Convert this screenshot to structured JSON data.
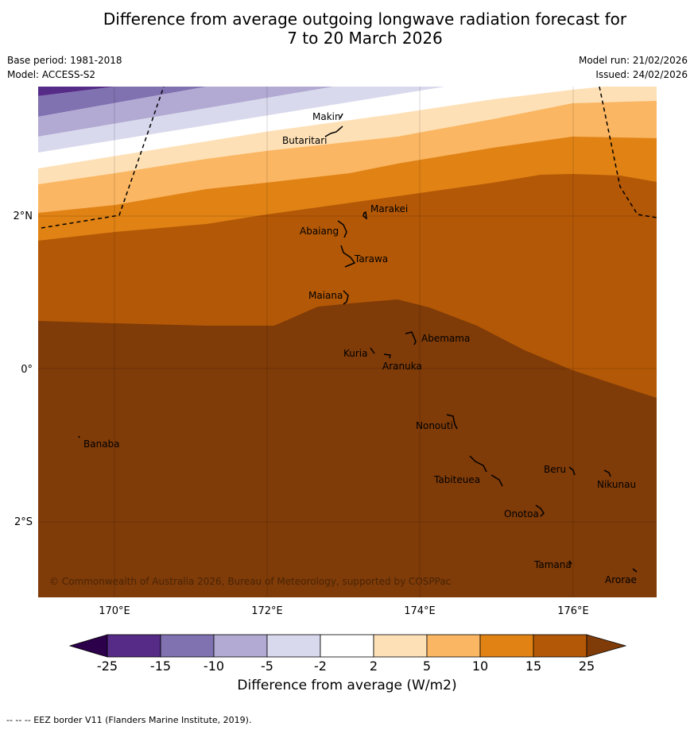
{
  "title": {
    "line1": "Difference from average outgoing longwave radiation forecast for",
    "line2": "7 to 20 March 2026"
  },
  "meta": {
    "base_period": "Base period: 1981-2018",
    "model": "Model: ACCESS-S2",
    "model_run": "Model run: 21/02/2026",
    "issued": "Issued: 24/02/2026"
  },
  "map": {
    "lon_labels": [
      "170°E",
      "172°E",
      "174°E",
      "176°E"
    ],
    "lat_labels": [
      "2°N",
      "0°",
      "2°S"
    ],
    "copyright": "© Commonwealth of Australia 2026, Bureau of Meteorology, supported by COSPPac",
    "places": [
      "Makin",
      "Butaritari",
      "Marakei",
      "Abaiang",
      "Tarawa",
      "Maiana",
      "Abemama",
      "Kuria",
      "Aranuka",
      "Nonouti",
      "Banaba",
      "Beru",
      "Nikunau",
      "Tabiteuea",
      "Onotoa",
      "Tamana",
      "Arorae"
    ]
  },
  "colorbar": {
    "ticks": [
      "-25",
      "-15",
      "-10",
      "-5",
      "-2",
      "2",
      "5",
      "10",
      "15",
      "25"
    ],
    "colors": [
      "#552b87",
      "#8071b0",
      "#b2aad3",
      "#d8d9ec",
      "#ffffff",
      "#fee0b6",
      "#fab662",
      "#e08214",
      "#b35806",
      "#7f3b08"
    ],
    "under_color": "#2d004b",
    "label": "Difference from average (W/m2)"
  },
  "footnote": "--  --  -- EEZ border V11 (Flanders Marine Institute, 2019)."
}
